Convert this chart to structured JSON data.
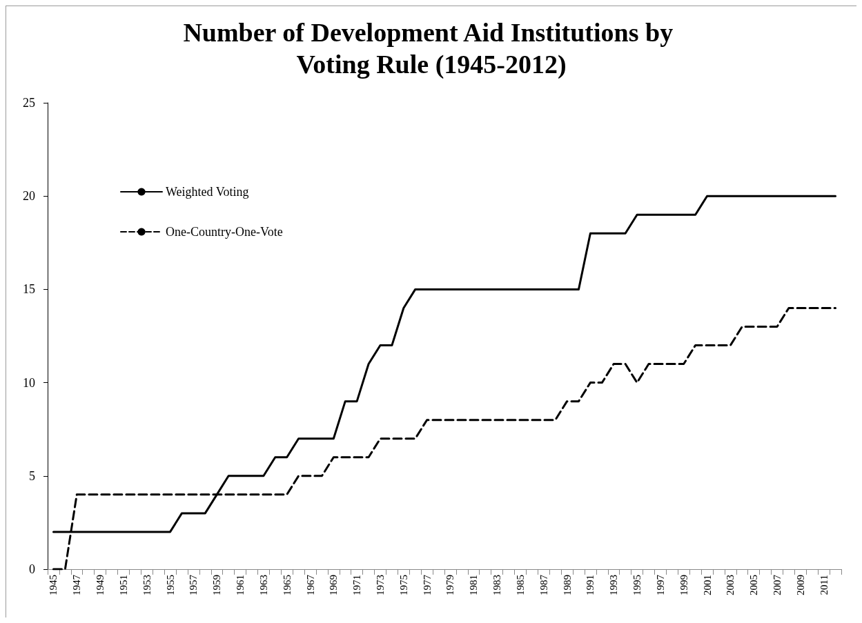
{
  "chart_data": {
    "type": "line",
    "title": "Number of Development Aid Institutions by Voting Rule (1945-2012)",
    "categories": [
      "1945",
      null,
      "1947",
      null,
      "1949",
      null,
      "1951",
      null,
      "1953",
      null,
      "1955",
      null,
      "1957",
      null,
      "1959",
      null,
      "1961",
      null,
      "1963",
      null,
      "1965",
      null,
      "1967",
      null,
      "1969",
      null,
      "1971",
      null,
      "1973",
      null,
      "1975",
      null,
      "1977",
      null,
      "1979",
      null,
      "1981",
      null,
      "1983",
      null,
      "1985",
      null,
      "1987",
      null,
      "1989",
      null,
      "1991",
      null,
      "1993",
      null,
      "1995",
      null,
      "1997",
      null,
      "1999",
      null,
      "2001",
      null,
      "2003",
      null,
      "2005",
      null,
      "2007",
      null,
      "2009",
      null,
      "2011",
      null
    ],
    "series": [
      {
        "name": "Weighted Voting",
        "color": "#000000",
        "line_style": "solid",
        "values": [
          2,
          2,
          2,
          2,
          2,
          2,
          2,
          2,
          2,
          2,
          2,
          3,
          3,
          3,
          4,
          5,
          5,
          5,
          5,
          6,
          6,
          7,
          7,
          7,
          7,
          9,
          9,
          11,
          12,
          12,
          14,
          15,
          15,
          15,
          15,
          15,
          15,
          15,
          15,
          15,
          15,
          15,
          15,
          15,
          15,
          15,
          18,
          18,
          18,
          18,
          19,
          19,
          19,
          19,
          19,
          19,
          20,
          20,
          20,
          20,
          20,
          20,
          20,
          20,
          20,
          20,
          20,
          20
        ]
      },
      {
        "name": "One-Country-One-Vote",
        "color": "#000000",
        "line_style": "dashed",
        "values": [
          0,
          0,
          4,
          4,
          4,
          4,
          4,
          4,
          4,
          4,
          4,
          4,
          4,
          4,
          4,
          4,
          4,
          4,
          4,
          4,
          4,
          5,
          5,
          5,
          6,
          6,
          6,
          6,
          7,
          7,
          7,
          7,
          8,
          8,
          8,
          8,
          8,
          8,
          8,
          8,
          8,
          8,
          8,
          8,
          9,
          9,
          10,
          10,
          11,
          11,
          10,
          11,
          11,
          11,
          11,
          12,
          12,
          12,
          12,
          13,
          13,
          13,
          13,
          14,
          14,
          14,
          14,
          14
        ]
      }
    ],
    "ylim": [
      0,
      25
    ],
    "yticks": [
      0,
      5,
      10,
      15,
      20,
      25
    ],
    "grid": false,
    "legend": "left",
    "marker": "none"
  }
}
